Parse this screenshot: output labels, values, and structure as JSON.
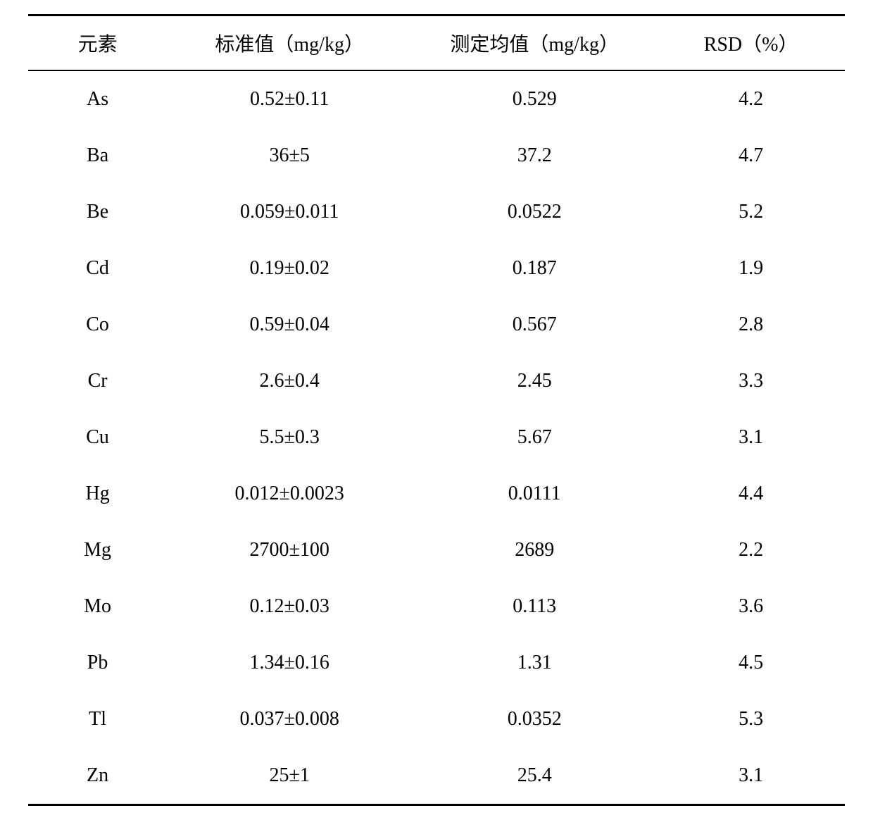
{
  "table": {
    "type": "table",
    "background_color": "#ffffff",
    "text_color": "#000000",
    "border_color": "#000000",
    "top_border_width": 3,
    "header_bottom_border_width": 2,
    "bottom_border_width": 3,
    "base_fontsize": 28,
    "row_padding_v": 24,
    "header_padding_v": 18,
    "columns": [
      {
        "key": "element",
        "label": "元素",
        "width_pct": 17
      },
      {
        "key": "standard",
        "label": "标准值（mg/kg）",
        "width_pct": 30
      },
      {
        "key": "measured",
        "label": "测定均值（mg/kg）",
        "width_pct": 30
      },
      {
        "key": "rsd",
        "label": "RSD（%）",
        "width_pct": 23
      }
    ],
    "rows": [
      {
        "element": "As",
        "standard": "0.52±0.11",
        "measured": "0.529",
        "rsd": "4.2"
      },
      {
        "element": "Ba",
        "standard": "36±5",
        "measured": "37.2",
        "rsd": "4.7"
      },
      {
        "element": "Be",
        "standard": "0.059±0.011",
        "measured": "0.0522",
        "rsd": "5.2"
      },
      {
        "element": "Cd",
        "standard": "0.19±0.02",
        "measured": "0.187",
        "rsd": "1.9"
      },
      {
        "element": "Co",
        "standard": "0.59±0.04",
        "measured": "0.567",
        "rsd": "2.8"
      },
      {
        "element": "Cr",
        "standard": "2.6±0.4",
        "measured": "2.45",
        "rsd": "3.3"
      },
      {
        "element": "Cu",
        "standard": "5.5±0.3",
        "measured": "5.67",
        "rsd": "3.1"
      },
      {
        "element": "Hg",
        "standard": "0.012±0.0023",
        "measured": "0.0111",
        "rsd": "4.4"
      },
      {
        "element": "Mg",
        "standard": "2700±100",
        "measured": "2689",
        "rsd": "2.2"
      },
      {
        "element": "Mo",
        "standard": "0.12±0.03",
        "measured": "0.113",
        "rsd": "3.6"
      },
      {
        "element": "Pb",
        "standard": "1.34±0.16",
        "measured": "1.31",
        "rsd": "4.5"
      },
      {
        "element": "Tl",
        "standard": "0.037±0.008",
        "measured": "0.0352",
        "rsd": "5.3"
      },
      {
        "element": "Zn",
        "standard": "25±1",
        "measured": "25.4",
        "rsd": "3.1"
      }
    ]
  }
}
